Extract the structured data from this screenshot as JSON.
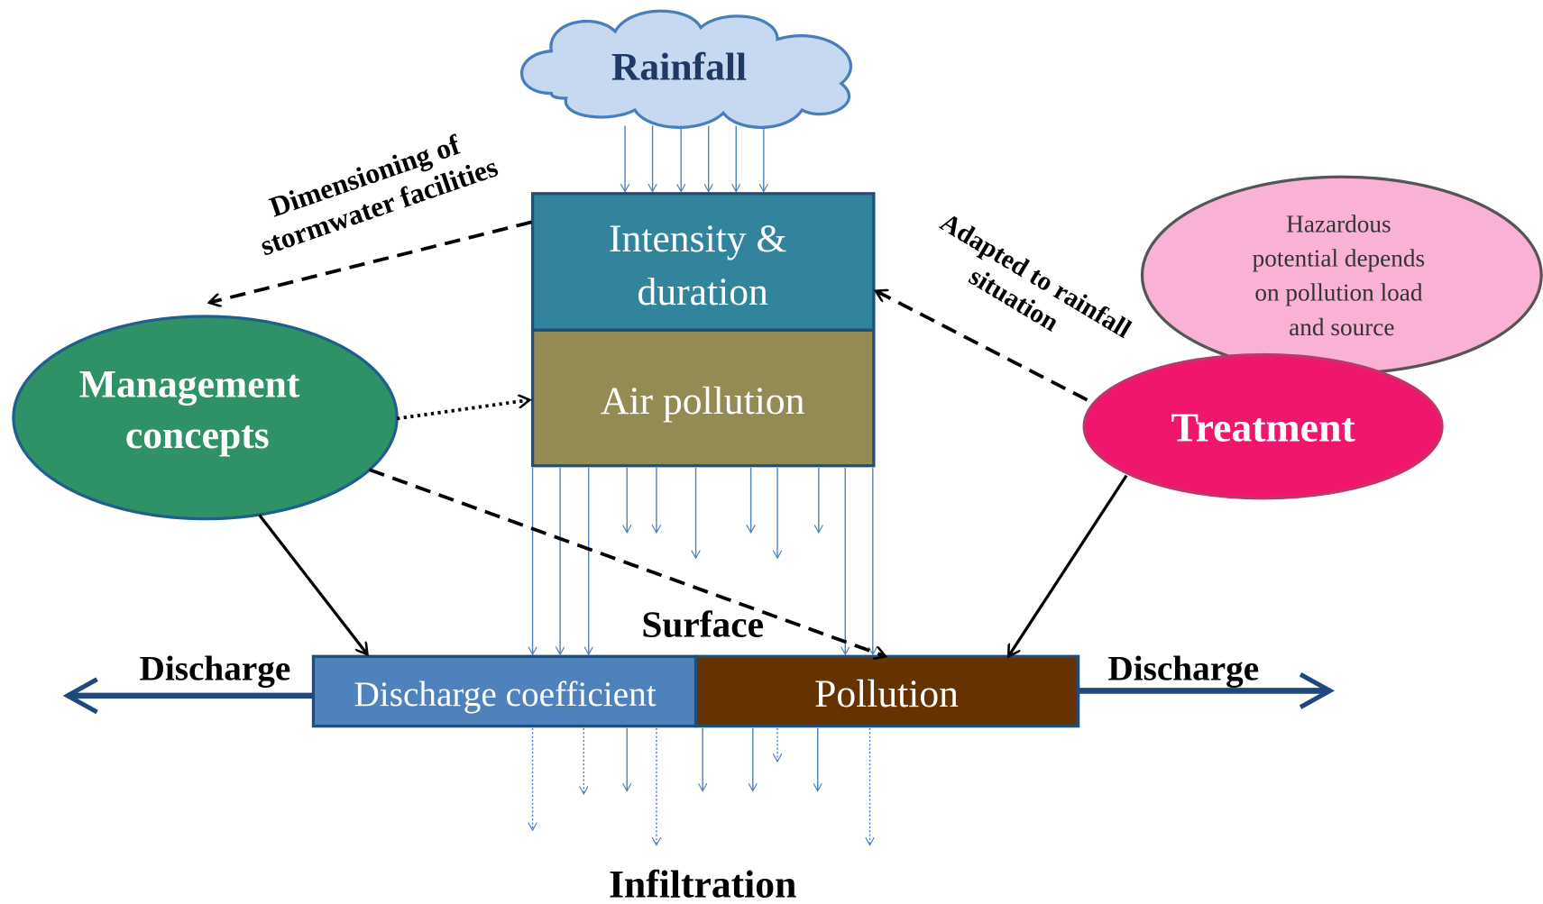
{
  "nodes": {
    "rainfall": "Rainfall",
    "intensity": [
      "Intensity &",
      "duration"
    ],
    "air_pollution": "Air pollution",
    "management": [
      "Management",
      "concepts"
    ],
    "treatment": "Treatment",
    "hazard": [
      "Hazardous",
      "potential depends",
      "on pollution load",
      "and source"
    ],
    "discharge_coefficient": "Discharge coefficient",
    "pollution": "Pollution"
  },
  "labels": {
    "dimensioning": [
      "Dimensioning of",
      "stormwater facilities"
    ],
    "adapted": [
      "Adapted to rainfall",
      "situation"
    ],
    "surface": "Surface",
    "infiltration": "Infiltration",
    "discharge_left": "Discharge",
    "discharge_right": "Discharge"
  }
}
